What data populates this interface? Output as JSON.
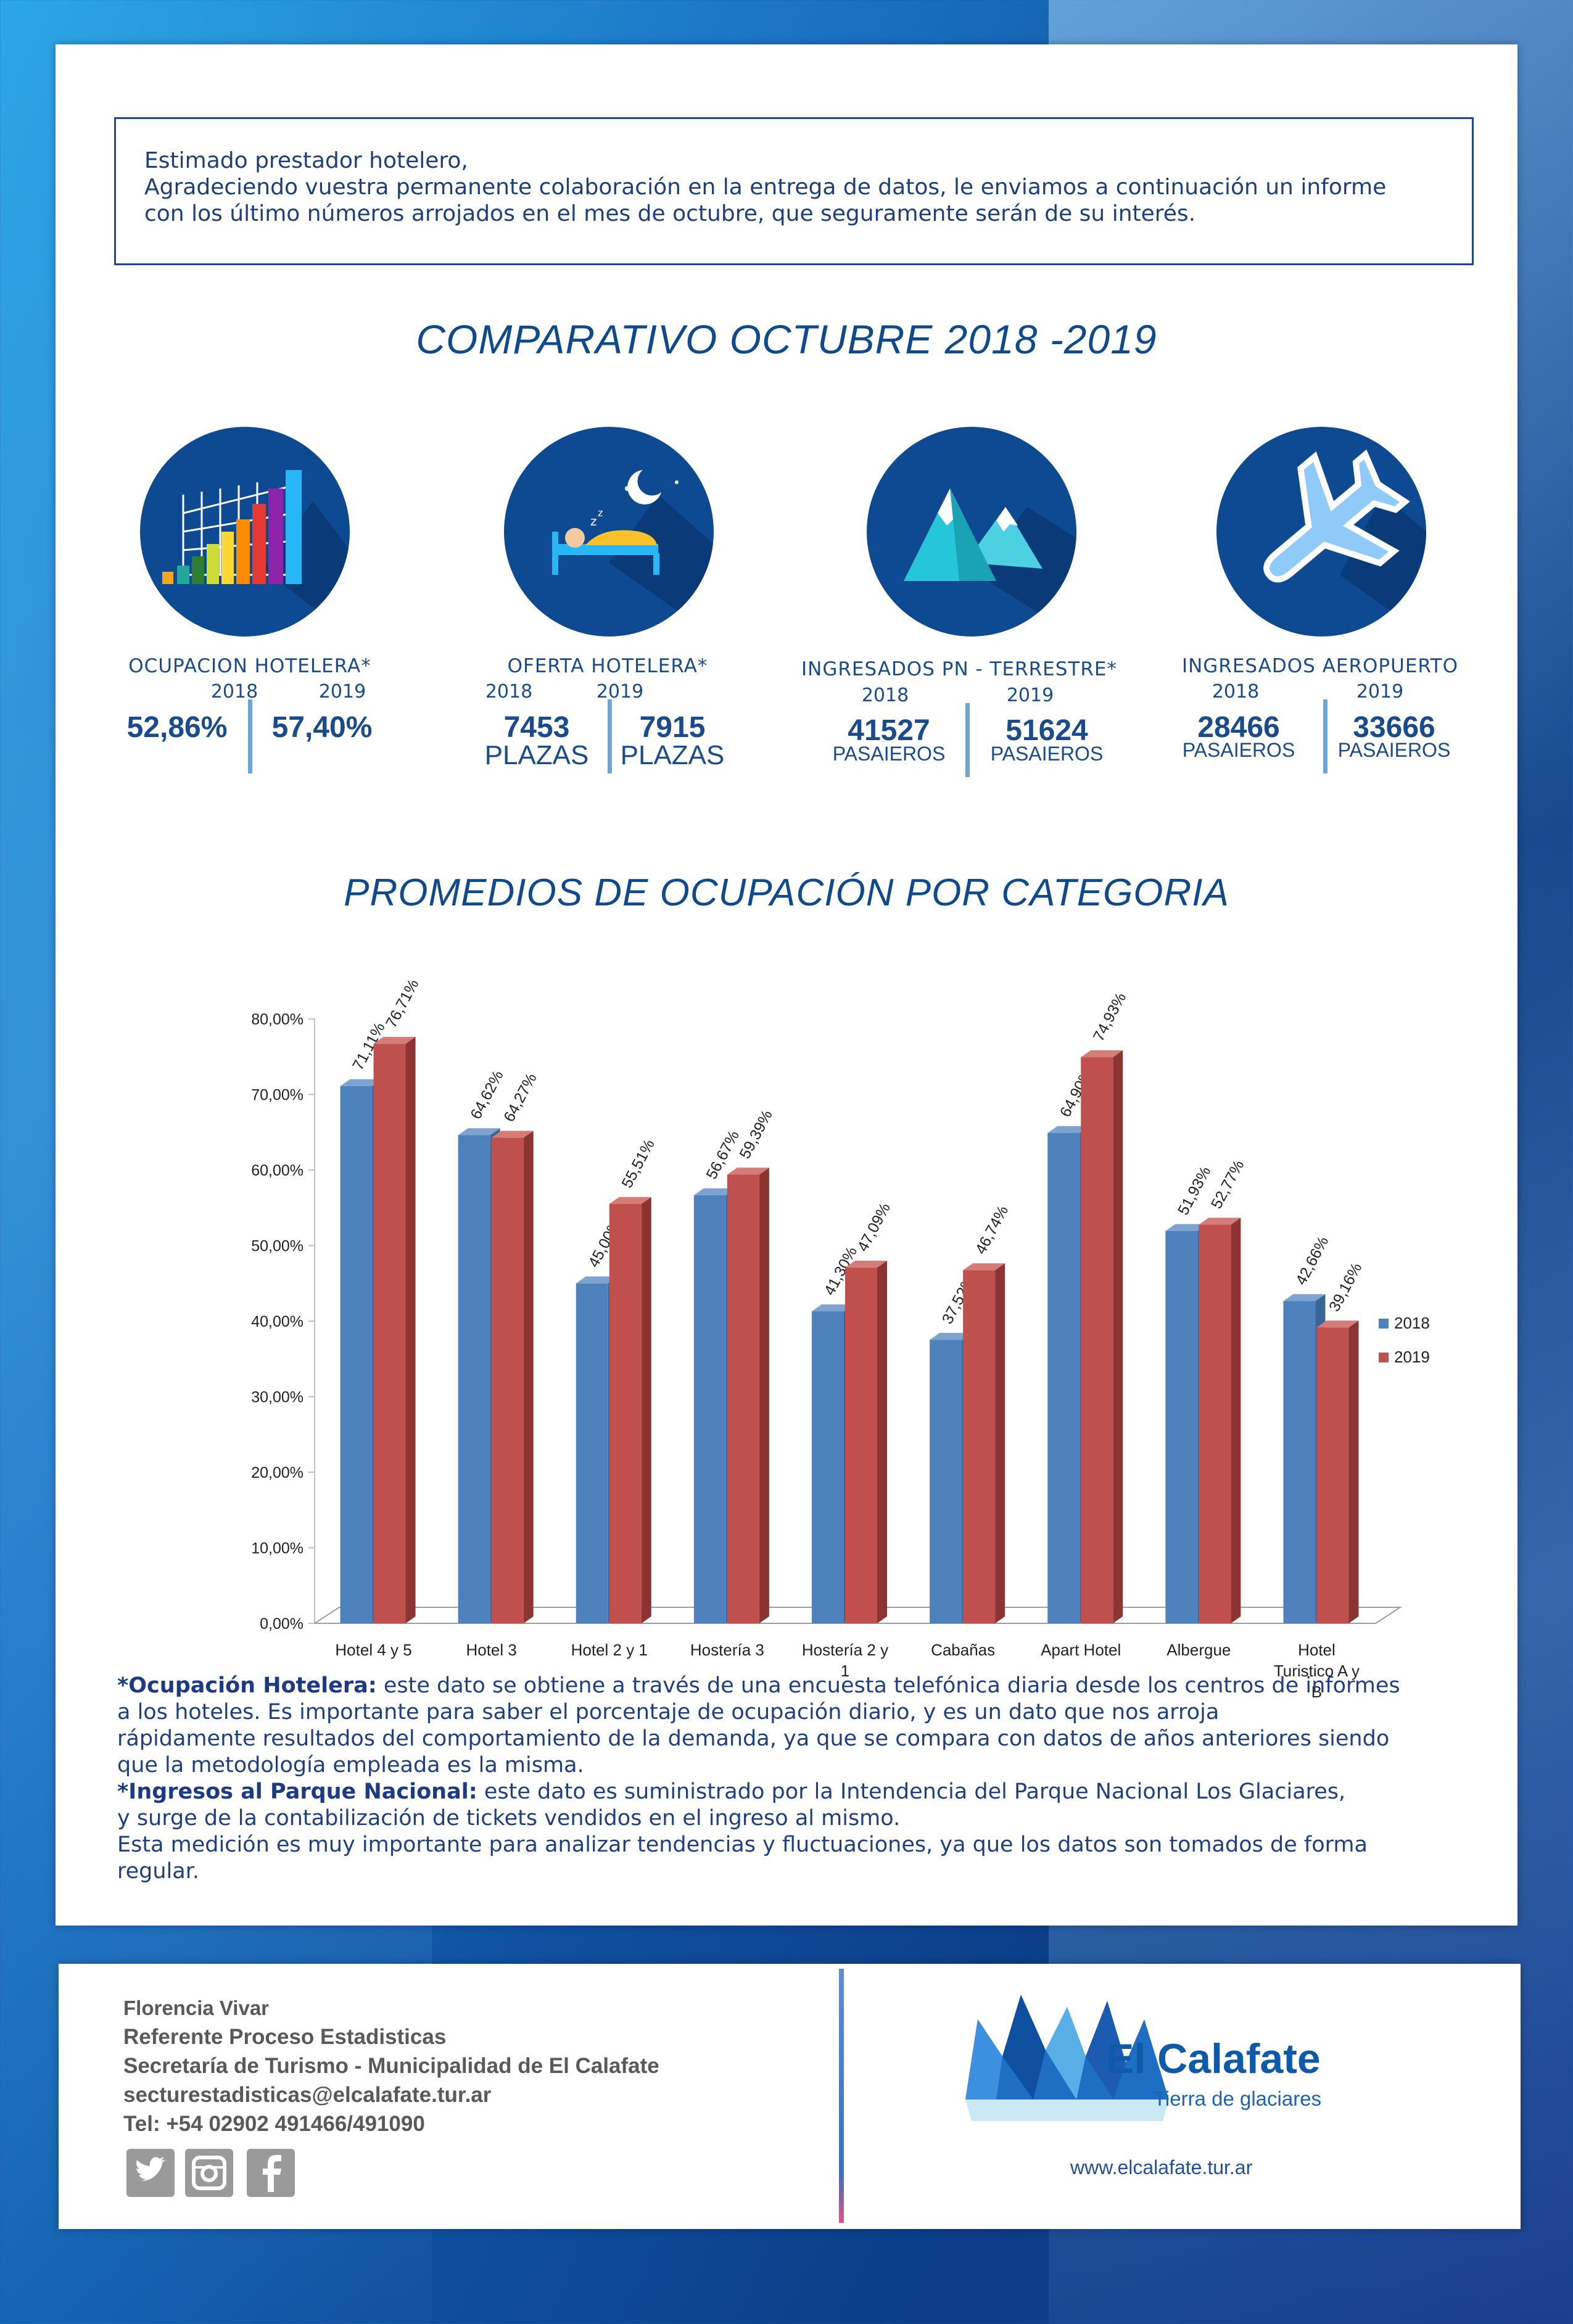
{
  "intro": {
    "line1": "Estimado prestador hotelero,",
    "line2": "Agradeciendo vuestra permanente colaboración en la entrega de datos, le enviamos a continuación un informe",
    "line3": "con los último números arrojados en el mes de octubre, que seguramente serán de su interés."
  },
  "heading1": "COMPARATIVO OCTUBRE 2018 -2019",
  "stats": [
    {
      "title": "OCUPACION HOTELERA*",
      "year_a": "2018",
      "year_b": "2019",
      "val_a": "52,86%",
      "val_b": "57,40%",
      "unit_a": "",
      "unit_b": "",
      "icon": "bar-chart-icon"
    },
    {
      "title": "OFERTA HOTELERA*",
      "year_a": "2018",
      "year_b": "2019",
      "val_a": "7453",
      "val_b": "7915",
      "unit_a": "PLAZAS",
      "unit_b": "PLAZAS",
      "icon": "bed-moon-icon"
    },
    {
      "title": "INGRESADOS PN - TERRESTRE*",
      "year_a": "2018",
      "year_b": "2019",
      "val_a": "41527",
      "val_b": "51624",
      "unit_a": "PASAIEROS",
      "unit_b": "PASAIEROS",
      "icon": "mountain-icon"
    },
    {
      "title": "INGRESADOS AEROPUERTO",
      "year_a": "2018",
      "year_b": "2019",
      "val_a": "28466",
      "val_b": "33666",
      "unit_a": "PASAIEROS",
      "unit_b": "PASAIEROS",
      "icon": "airplane-icon"
    }
  ],
  "heading2": "PROMEDIOS DE OCUPACIÓN POR CATEGORIA",
  "chart_data": {
    "type": "bar",
    "categories": [
      "Hotel 4 y 5",
      "Hotel 3",
      "Hotel 2 y 1",
      "Hostería 3",
      "Hostería 2 y 1",
      "Cabañas",
      "Apart Hotel",
      "Albergue",
      "Hotel Turistico A y B"
    ],
    "category_lines": [
      [
        "Hotel 4 y 5"
      ],
      [
        "Hotel 3"
      ],
      [
        "Hotel 2 y 1"
      ],
      [
        "Hostería 3"
      ],
      [
        "Hostería 2 y",
        "1"
      ],
      [
        "Cabañas"
      ],
      [
        "Apart Hotel"
      ],
      [
        "Albergue"
      ],
      [
        "Hotel",
        "Turistico A y",
        "B"
      ]
    ],
    "series": [
      {
        "name": "2018",
        "color": "#4f81bd",
        "values": [
          71.11,
          64.62,
          45.0,
          56.67,
          41.3,
          37.52,
          64.9,
          51.93,
          42.66
        ],
        "labels": [
          "71,11%",
          "64,62%",
          "45,00%",
          "56,67%",
          "41,30%",
          "37,52%",
          "64,90%",
          "51,93%",
          "42,66%"
        ]
      },
      {
        "name": "2019",
        "color": "#c0504d",
        "values": [
          76.71,
          64.27,
          55.51,
          59.39,
          47.09,
          46.74,
          74.93,
          52.77,
          39.16
        ],
        "labels": [
          "76,71%",
          "64,27%",
          "55,51%",
          "59,39%",
          "47,09%",
          "46,74%",
          "74,93%",
          "52,77%",
          "39,16%"
        ]
      }
    ],
    "ylim": [
      0,
      80
    ],
    "yticks": [
      "0,00%",
      "10,00%",
      "20,00%",
      "30,00%",
      "40,00%",
      "50,00%",
      "60,00%",
      "70,00%",
      "80,00%"
    ],
    "legend": "right",
    "grid": false
  },
  "notes": {
    "n1_bold": "*Ocupación Hotelera:",
    "n1_text": " este dato se obtiene a través de una encuesta telefónica diaria desde los centros de informes",
    "n1_l2": "a los hoteles. Es importante para saber el porcentaje de ocupación diario, y es un dato que nos arroja",
    "n1_l3": "rápidamente resultados del comportamiento de la demanda, ya que se compara con datos de años anteriores siendo",
    "n1_l4": "que la metodología empleada es la misma.",
    "n2_bold": "*Ingresos al Parque Nacional:",
    "n2_text": " este dato es suministrado por la Intendencia del Parque Nacional Los Glaciares,",
    "n2_l2": "y surge de la contabilización de tickets vendidos en el ingreso al mismo.",
    "n3_l1": "Esta medición es muy importante para analizar tendencias y fluctuaciones, ya que los datos son tomados de forma",
    "n3_l2": "regular."
  },
  "footer": {
    "name": "Florencia Vivar",
    "role": "Referente Proceso Estadisticas",
    "org": "Secretaría de Turismo - Municipalidad de El Calafate",
    "email": "secturestadisticas@elcalafate.tur.ar",
    "tel": "Tel: +54 02902 491466/491090",
    "logo_title": "El Calafate",
    "logo_subtitle": "Tierra de glaciares",
    "url": "www.elcalafate.tur.ar"
  }
}
